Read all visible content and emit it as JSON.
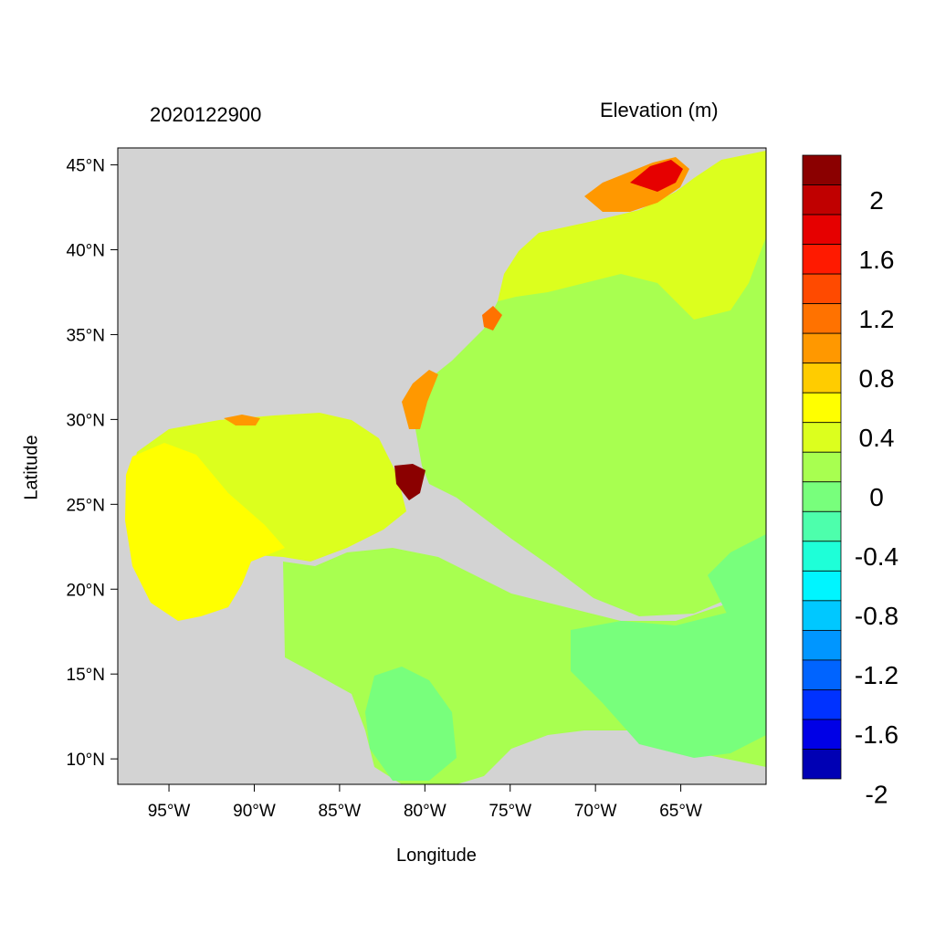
{
  "titles": {
    "left": "2020122900",
    "right": "Elevation (m)"
  },
  "axes": {
    "xlabel": "Longitude",
    "ylabel": "Latitude",
    "lon_range": [
      -98.0,
      -60.0
    ],
    "lat_range": [
      8.5,
      46.0
    ],
    "x_ticks": [
      {
        "value": -95,
        "label": "95°W"
      },
      {
        "value": -90,
        "label": "90°W"
      },
      {
        "value": -85,
        "label": "85°W"
      },
      {
        "value": -80,
        "label": "80°W"
      },
      {
        "value": -75,
        "label": "75°W"
      },
      {
        "value": -70,
        "label": "70°W"
      },
      {
        "value": -65,
        "label": "65°W"
      }
    ],
    "y_ticks": [
      {
        "value": 45,
        "label": "45°N"
      },
      {
        "value": 40,
        "label": "40°N"
      },
      {
        "value": 35,
        "label": "35°N"
      },
      {
        "value": 30,
        "label": "30°N"
      },
      {
        "value": 25,
        "label": "25°N"
      },
      {
        "value": 20,
        "label": "20°N"
      },
      {
        "value": 15,
        "label": "15°N"
      },
      {
        "value": 10,
        "label": "10°N"
      }
    ]
  },
  "colorbar": {
    "colors_top_to_bottom": [
      "#8b0000",
      "#c00000",
      "#e60000",
      "#ff1a00",
      "#ff4a00",
      "#ff7200",
      "#ff9800",
      "#ffcc00",
      "#ffff00",
      "#dcff1e",
      "#a8ff50",
      "#78ff7c",
      "#4dffac",
      "#1effd8",
      "#00f5ff",
      "#00c8ff",
      "#0096ff",
      "#0064ff",
      "#0032ff",
      "#0000e6",
      "#0000b4"
    ],
    "labels": [
      {
        "level": 2.0,
        "label": "2"
      },
      {
        "level": 1.6,
        "label": "1.6"
      },
      {
        "level": 1.2,
        "label": "1.2"
      },
      {
        "level": 0.8,
        "label": "0.8"
      },
      {
        "level": 0.4,
        "label": "0.4"
      },
      {
        "level": 0.0,
        "label": "0"
      },
      {
        "level": -0.4,
        "label": "-0.4"
      },
      {
        "level": -0.8,
        "label": "-0.8"
      },
      {
        "level": -1.2,
        "label": "-1.2"
      },
      {
        "level": -1.6,
        "label": "-1.6"
      },
      {
        "level": -2.0,
        "label": "-2"
      }
    ]
  },
  "colors": {
    "land": "#d3d3d3",
    "water_edge": "#ffffff"
  }
}
